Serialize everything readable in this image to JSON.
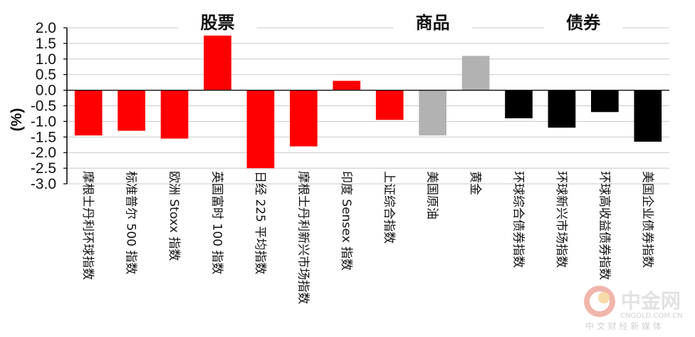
{
  "chart_data": {
    "type": "bar",
    "ylabel": "(%)",
    "ylim": [
      -3.0,
      2.0
    ],
    "yticks": [
      "2.0",
      "1.5",
      "1.0",
      "0.5",
      "0.0",
      "-0.5",
      "-1.0",
      "-1.5",
      "-2.0",
      "-2.5",
      "-3.0"
    ],
    "grid": true,
    "groups": [
      {
        "label": "股票",
        "start": 0,
        "end": 7
      },
      {
        "label": "商品",
        "start": 7,
        "end": 10
      },
      {
        "label": "债券",
        "start": 10,
        "end": 14
      }
    ],
    "categories": [
      "摩根士丹利环球指数",
      "标准普尔 500 指数",
      "欧洲 Stoxx 指数",
      "英国富时 100 指数",
      "日经 225 平均指数",
      "摩根士丹利新兴市场指数",
      "印度 Sensex 指数",
      "上证综合指数",
      "美国原油",
      "黄金",
      "环球综合债券指数",
      "环球新兴市场指数",
      "环球高收益债券指数",
      "美国企业债券指数"
    ],
    "values": [
      -1.45,
      -1.3,
      -1.55,
      1.75,
      -2.5,
      -1.8,
      0.3,
      -0.95,
      -1.45,
      1.1,
      -0.9,
      -1.2,
      -0.7,
      -1.65
    ],
    "colors": [
      "#ff0000",
      "#ff0000",
      "#ff0000",
      "#ff0000",
      "#ff0000",
      "#ff0000",
      "#ff0000",
      "#ff0000",
      "#b2b2b2",
      "#b2b2b2",
      "#000000",
      "#000000",
      "#000000",
      "#000000"
    ]
  },
  "watermark": {
    "brand": "中金网",
    "domain": "CNGOLD.COM.CN",
    "tagline": "中 文 财 经 新 媒 体"
  }
}
